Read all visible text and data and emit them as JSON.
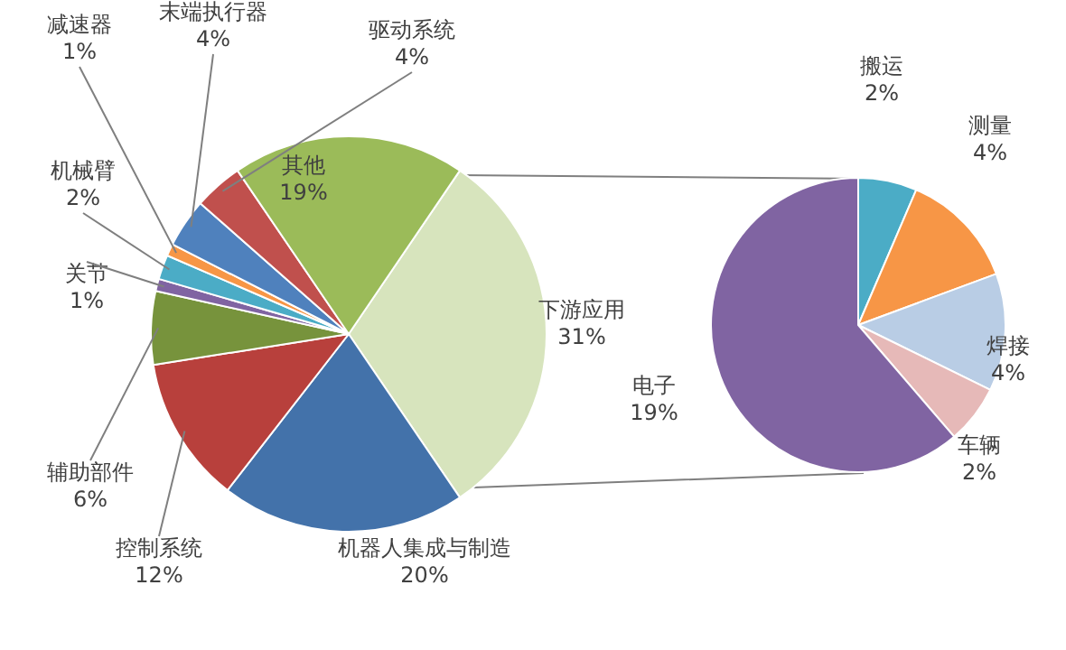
{
  "chart_data": [
    {
      "type": "pie",
      "categories": [
        "下游应用",
        "机器人集成与制造",
        "控制系统",
        "辅助部件",
        "关节",
        "机械臂",
        "减速器",
        "末端执行器",
        "驱动系统",
        "其他"
      ],
      "values": [
        31,
        20,
        12,
        6,
        1,
        2,
        1,
        4,
        4,
        19
      ],
      "colors": [
        "#d7e4bd",
        "#4372aa",
        "#b8403c",
        "#77933c",
        "#8064a2",
        "#4bacc6",
        "#f79646",
        "#4f81bd",
        "#c0504d",
        "#9bbb59"
      ],
      "value_labels": [
        "31%",
        "20%",
        "12%",
        "6%",
        "1%",
        "2%",
        "1%",
        "4%",
        "4%",
        "19%"
      ]
    },
    {
      "type": "pie",
      "categories": [
        "搬运",
        "测量",
        "焊接",
        "车辆",
        "电子"
      ],
      "values": [
        2,
        4,
        4,
        2,
        19
      ],
      "colors": [
        "#4bacc6",
        "#f79646",
        "#b9cde5",
        "#e6b9b8",
        "#8064a2"
      ],
      "value_labels": [
        "2%",
        "4%",
        "4%",
        "2%",
        "19%"
      ]
    }
  ]
}
